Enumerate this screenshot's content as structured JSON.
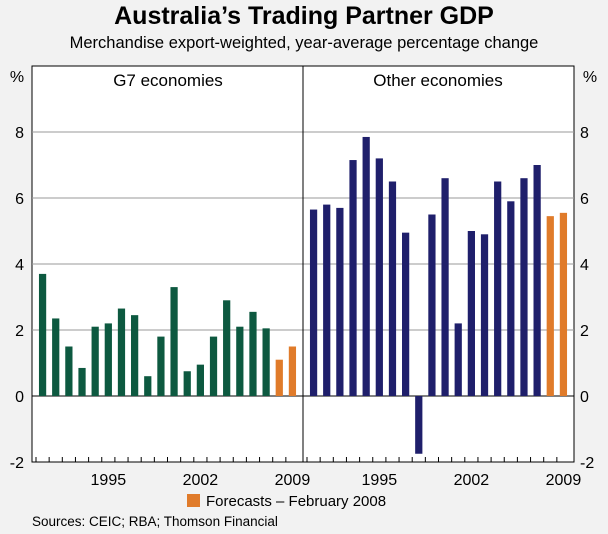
{
  "chart_data": {
    "type": "bar",
    "title": "Australia’s Trading Partner GDP",
    "subtitle": "Merchandise export-weighted, year-average percentage change",
    "unit_left": "%",
    "unit_right": "%",
    "ylim": [
      -2,
      10
    ],
    "yticks": [
      -2,
      0,
      2,
      4,
      6,
      8
    ],
    "legend": {
      "label": "Forecasts – February 2008",
      "color": "#e07b2a",
      "position": "bottom-center"
    },
    "source": "Sources: CEIC; RBA; Thomson Financial",
    "panels": [
      {
        "name": "G7 economies",
        "xtick_labels": [
          "1995",
          "2002",
          "2009"
        ],
        "xtick_years": [
          1995,
          2002,
          2009
        ],
        "bar_color": "#0d5940",
        "forecast_color": "#e07b2a",
        "years": [
          1990,
          1991,
          1992,
          1993,
          1994,
          1995,
          1996,
          1997,
          1998,
          1999,
          2000,
          2001,
          2002,
          2003,
          2004,
          2005,
          2006,
          2007,
          2008,
          2009
        ],
        "values": [
          3.7,
          2.35,
          1.5,
          0.85,
          2.1,
          2.2,
          2.65,
          2.45,
          0.6,
          1.8,
          3.3,
          0.75,
          0.95,
          1.8,
          2.9,
          2.1,
          2.55,
          2.05,
          1.1,
          1.5
        ],
        "forecast": [
          false,
          false,
          false,
          false,
          false,
          false,
          false,
          false,
          false,
          false,
          false,
          false,
          false,
          false,
          false,
          false,
          false,
          false,
          true,
          true
        ]
      },
      {
        "name": "Other economies",
        "xtick_labels": [
          "1995",
          "2002",
          "2009"
        ],
        "xtick_years": [
          1995,
          2002,
          2009
        ],
        "bar_color": "#1f1f6b",
        "forecast_color": "#e07b2a",
        "years": [
          1990,
          1991,
          1992,
          1993,
          1994,
          1995,
          1996,
          1997,
          1998,
          1999,
          2000,
          2001,
          2002,
          2003,
          2004,
          2005,
          2006,
          2007,
          2008,
          2009
        ],
        "values": [
          5.65,
          5.8,
          5.7,
          7.15,
          7.85,
          7.2,
          6.5,
          4.95,
          -1.75,
          5.5,
          6.6,
          2.2,
          5.0,
          4.9,
          6.5,
          5.9,
          6.6,
          7.0,
          5.45,
          5.55
        ],
        "forecast": [
          false,
          false,
          false,
          false,
          false,
          false,
          false,
          false,
          false,
          false,
          false,
          false,
          false,
          false,
          false,
          false,
          false,
          false,
          true,
          true
        ]
      }
    ]
  }
}
